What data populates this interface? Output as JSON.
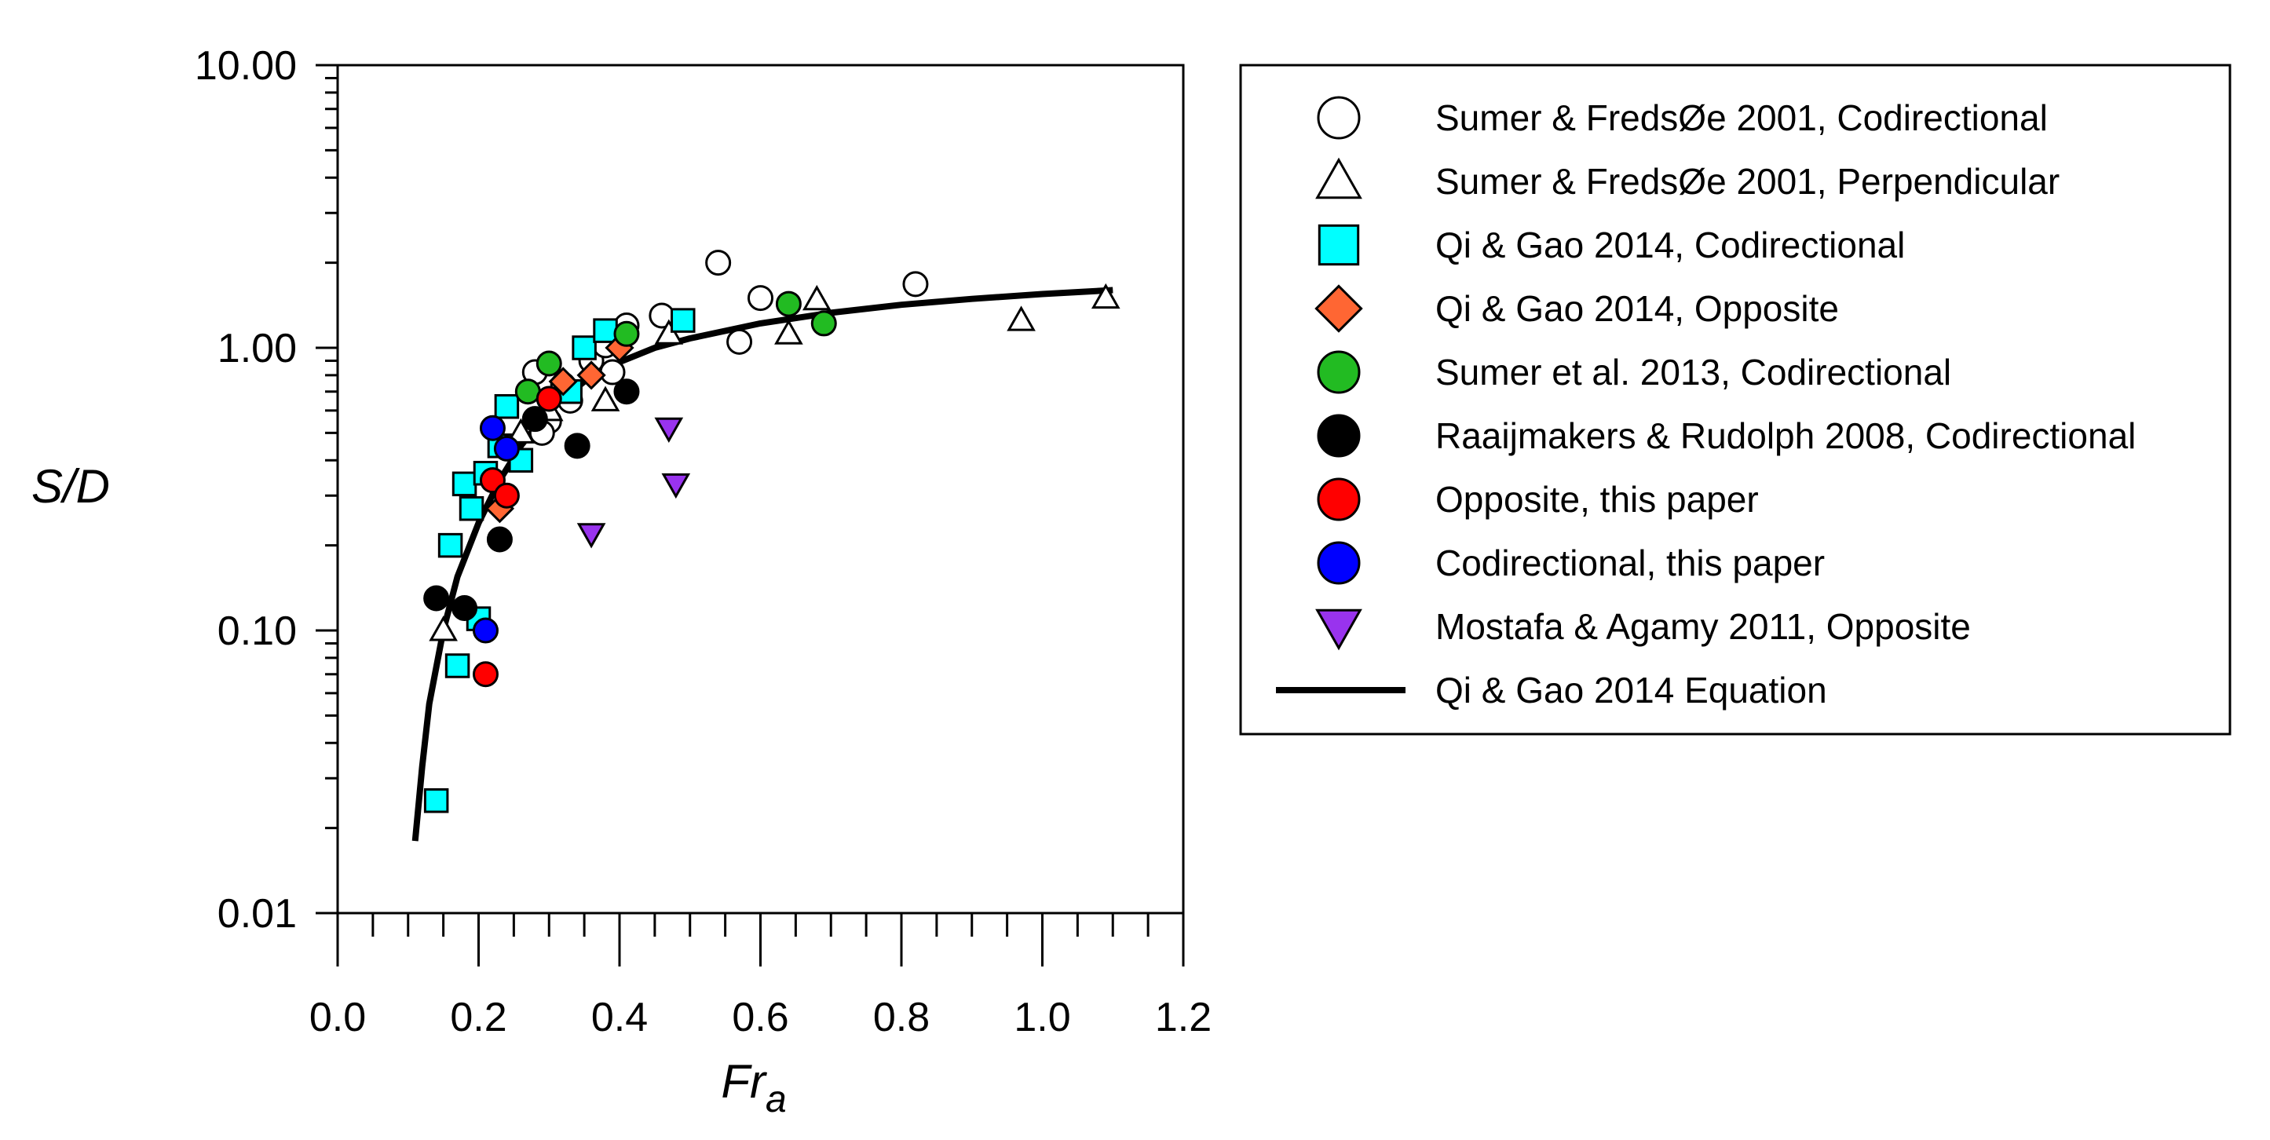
{
  "chart_data": {
    "type": "scatter",
    "title": "",
    "xlabel": "Fr",
    "xlabel_subscript": "a",
    "ylabel": "S/D",
    "xlim": [
      0,
      1.2
    ],
    "ylim": [
      0.01,
      10
    ],
    "yscale": "log",
    "x_ticks": [
      "0.0",
      "0.2",
      "0.4",
      "0.6",
      "0.8",
      "1.0",
      "1.2"
    ],
    "y_ticks": [
      "0.01",
      "0.10",
      "1.00",
      "10.00"
    ],
    "legend_position": "right",
    "series": [
      {
        "name": "Sumer & FredsØe 2001, Codirectional",
        "marker": "circle",
        "fill": "#ffffff",
        "stroke": "#000000",
        "points": [
          [
            0.28,
            0.82
          ],
          [
            0.3,
            0.55
          ],
          [
            0.32,
            0.74
          ],
          [
            0.29,
            0.5
          ],
          [
            0.33,
            0.65
          ],
          [
            0.36,
            0.9
          ],
          [
            0.38,
            1.02
          ],
          [
            0.39,
            0.82
          ],
          [
            0.41,
            1.2
          ],
          [
            0.46,
            1.3
          ],
          [
            0.54,
            2.0
          ],
          [
            0.57,
            1.05
          ],
          [
            0.6,
            1.5
          ],
          [
            0.82,
            1.68
          ]
        ]
      },
      {
        "name": "Sumer & FredsØe 2001, Perpendicular",
        "marker": "triangle-up",
        "fill": "#ffffff",
        "stroke": "#000000",
        "points": [
          [
            0.15,
            0.1
          ],
          [
            0.26,
            0.5
          ],
          [
            0.3,
            0.6
          ],
          [
            0.38,
            0.65
          ],
          [
            0.47,
            1.12
          ],
          [
            0.64,
            1.12
          ],
          [
            0.68,
            1.48
          ],
          [
            0.97,
            1.25
          ],
          [
            1.09,
            1.5
          ]
        ]
      },
      {
        "name": "Qi & Gao 2014, Codirectional",
        "marker": "square",
        "fill": "#00ffff",
        "stroke": "#000000",
        "points": [
          [
            0.14,
            0.025
          ],
          [
            0.16,
            0.2
          ],
          [
            0.17,
            0.075
          ],
          [
            0.18,
            0.33
          ],
          [
            0.19,
            0.27
          ],
          [
            0.2,
            0.11
          ],
          [
            0.21,
            0.36
          ],
          [
            0.23,
            0.45
          ],
          [
            0.24,
            0.62
          ],
          [
            0.26,
            0.4
          ],
          [
            0.33,
            0.7
          ],
          [
            0.35,
            1.0
          ],
          [
            0.38,
            1.15
          ],
          [
            0.49,
            1.25
          ]
        ]
      },
      {
        "name": "Qi & Gao 2014, Opposite",
        "marker": "diamond",
        "fill": "#ff6633",
        "stroke": "#000000",
        "points": [
          [
            0.23,
            0.27
          ],
          [
            0.32,
            0.76
          ],
          [
            0.36,
            0.8
          ],
          [
            0.4,
            1.0
          ]
        ]
      },
      {
        "name": "Sumer et al.  2013, Codirectional",
        "marker": "circle",
        "fill": "#22bb22",
        "stroke": "#000000",
        "points": [
          [
            0.27,
            0.7
          ],
          [
            0.3,
            0.88
          ],
          [
            0.41,
            1.12
          ],
          [
            0.64,
            1.43
          ],
          [
            0.69,
            1.22
          ]
        ]
      },
      {
        "name": "Raaijmakers & Rudolph 2008, Codirectional",
        "marker": "circle",
        "fill": "#000000",
        "stroke": "#000000",
        "points": [
          [
            0.14,
            0.13
          ],
          [
            0.18,
            0.12
          ],
          [
            0.23,
            0.21
          ],
          [
            0.28,
            0.56
          ],
          [
            0.34,
            0.45
          ],
          [
            0.41,
            0.7
          ]
        ]
      },
      {
        "name": "Opposite, this paper",
        "marker": "circle",
        "fill": "#ff0000",
        "stroke": "#000000",
        "points": [
          [
            0.21,
            0.07
          ],
          [
            0.22,
            0.34
          ],
          [
            0.24,
            0.3
          ],
          [
            0.3,
            0.66
          ]
        ]
      },
      {
        "name": "Codirectional, this paper",
        "marker": "circle",
        "fill": "#0000ff",
        "stroke": "#000000",
        "points": [
          [
            0.21,
            0.1
          ],
          [
            0.22,
            0.52
          ],
          [
            0.24,
            0.44
          ]
        ]
      },
      {
        "name": "Mostafa & Agamy 2011, Opposite",
        "marker": "triangle-down",
        "fill": "#9933ee",
        "stroke": "#000000",
        "points": [
          [
            0.36,
            0.22
          ],
          [
            0.47,
            0.52
          ],
          [
            0.48,
            0.33
          ]
        ]
      }
    ],
    "curve": {
      "name": "Qi & Gao 2014 Equation",
      "stroke": "#000000",
      "points": [
        [
          0.11,
          0.018
        ],
        [
          0.12,
          0.033
        ],
        [
          0.13,
          0.055
        ],
        [
          0.15,
          0.1
        ],
        [
          0.17,
          0.155
        ],
        [
          0.2,
          0.24
        ],
        [
          0.23,
          0.34
        ],
        [
          0.26,
          0.45
        ],
        [
          0.3,
          0.6
        ],
        [
          0.35,
          0.76
        ],
        [
          0.4,
          0.89
        ],
        [
          0.45,
          1.0
        ],
        [
          0.5,
          1.08
        ],
        [
          0.6,
          1.22
        ],
        [
          0.7,
          1.33
        ],
        [
          0.8,
          1.42
        ],
        [
          0.9,
          1.49
        ],
        [
          1.0,
          1.55
        ],
        [
          1.1,
          1.6
        ]
      ]
    }
  }
}
